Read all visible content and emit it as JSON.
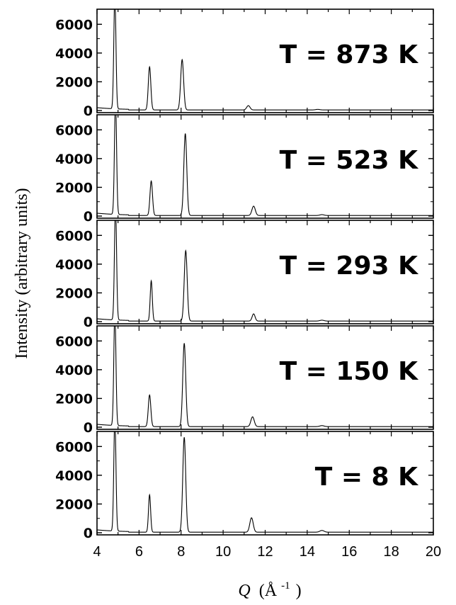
{
  "chart_data": {
    "type": "line",
    "ylabel": "Intensity (arbitrary units)",
    "xlabel_symbol": "Q",
    "xlabel_unit": "(Å",
    "xlabel_exponent": "-1",
    "xlabel_close": ")",
    "xlim": [
      4,
      20
    ],
    "ylim": [
      0,
      7000
    ],
    "x_ticks": [
      4,
      6,
      8,
      10,
      12,
      14,
      16,
      18,
      20
    ],
    "y_ticks": [
      0,
      2000,
      4000,
      6000
    ],
    "y_tick_labels": [
      "0",
      "2000",
      "4000",
      "6000"
    ],
    "x_tick_labels": [
      "4",
      "6",
      "8",
      "10",
      "12",
      "14",
      "16",
      "18",
      "20"
    ],
    "panels": [
      {
        "label": "T = 873 K",
        "baseline": 40,
        "peaks": [
          {
            "x": 4.85,
            "height": 8000,
            "width": 0.05
          },
          {
            "x": 6.5,
            "height": 3000,
            "width": 0.06
          },
          {
            "x": 8.05,
            "height": 3500,
            "width": 0.07
          },
          {
            "x": 11.2,
            "height": 300,
            "width": 0.08
          },
          {
            "x": 14.5,
            "height": 40,
            "width": 0.1
          }
        ]
      },
      {
        "label": "T = 523 K",
        "baseline": 40,
        "peaks": [
          {
            "x": 4.88,
            "height": 8000,
            "width": 0.05
          },
          {
            "x": 6.58,
            "height": 2400,
            "width": 0.06
          },
          {
            "x": 8.2,
            "height": 5700,
            "width": 0.07
          },
          {
            "x": 11.45,
            "height": 650,
            "width": 0.08
          },
          {
            "x": 14.7,
            "height": 60,
            "width": 0.1
          }
        ]
      },
      {
        "label": "T = 293 K",
        "baseline": 40,
        "peaks": [
          {
            "x": 4.88,
            "height": 8000,
            "width": 0.05
          },
          {
            "x": 6.58,
            "height": 2800,
            "width": 0.05
          },
          {
            "x": 8.22,
            "height": 4900,
            "width": 0.07
          },
          {
            "x": 11.45,
            "height": 500,
            "width": 0.07
          },
          {
            "x": 14.7,
            "height": 60,
            "width": 0.1
          }
        ]
      },
      {
        "label": "T = 150 K",
        "baseline": 40,
        "peaks": [
          {
            "x": 4.85,
            "height": 8000,
            "width": 0.05
          },
          {
            "x": 6.5,
            "height": 2200,
            "width": 0.06
          },
          {
            "x": 8.15,
            "height": 5800,
            "width": 0.07
          },
          {
            "x": 11.4,
            "height": 680,
            "width": 0.08
          },
          {
            "x": 14.7,
            "height": 70,
            "width": 0.1
          }
        ]
      },
      {
        "label": "T = 8 K",
        "baseline": 40,
        "peaks": [
          {
            "x": 4.85,
            "height": 8000,
            "width": 0.05
          },
          {
            "x": 6.5,
            "height": 2600,
            "width": 0.05
          },
          {
            "x": 8.15,
            "height": 6600,
            "width": 0.07
          },
          {
            "x": 11.35,
            "height": 1000,
            "width": 0.08
          },
          {
            "x": 14.7,
            "height": 120,
            "width": 0.1
          }
        ]
      }
    ],
    "grid": false,
    "legend": "none"
  }
}
